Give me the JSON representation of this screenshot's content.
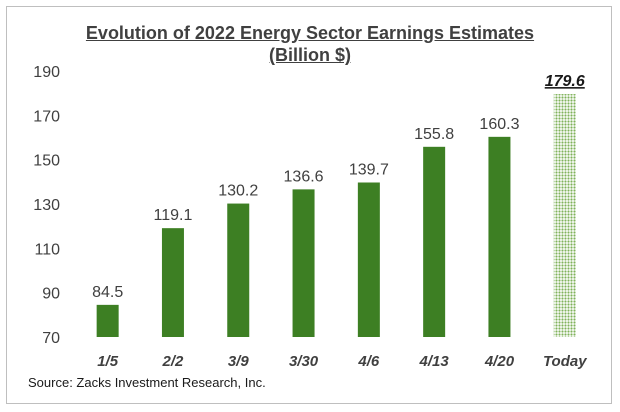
{
  "chart_data": {
    "type": "bar",
    "title": "Evolution of 2022 Energy Sector Earnings Estimates",
    "subtitle": "(Billion $)",
    "categories": [
      "1/5",
      "2/2",
      "3/9",
      "3/30",
      "4/6",
      "4/13",
      "4/20",
      "Today"
    ],
    "values": [
      84.5,
      119.1,
      130.2,
      136.6,
      139.7,
      155.8,
      160.3,
      179.6
    ],
    "value_labels": [
      "84.5",
      "119.1",
      "130.2",
      "136.6",
      "139.7",
      "155.8",
      "160.3",
      "179.6"
    ],
    "ylim": [
      70,
      190
    ],
    "yticks": [
      70,
      90,
      110,
      130,
      150,
      170,
      190
    ],
    "grid": false,
    "legend": "none",
    "bar_color": "#3d7f23",
    "highlight_color": "#8fbf6a",
    "highlight_category": "Today"
  },
  "source": "Source: Zacks Investment Research, Inc."
}
